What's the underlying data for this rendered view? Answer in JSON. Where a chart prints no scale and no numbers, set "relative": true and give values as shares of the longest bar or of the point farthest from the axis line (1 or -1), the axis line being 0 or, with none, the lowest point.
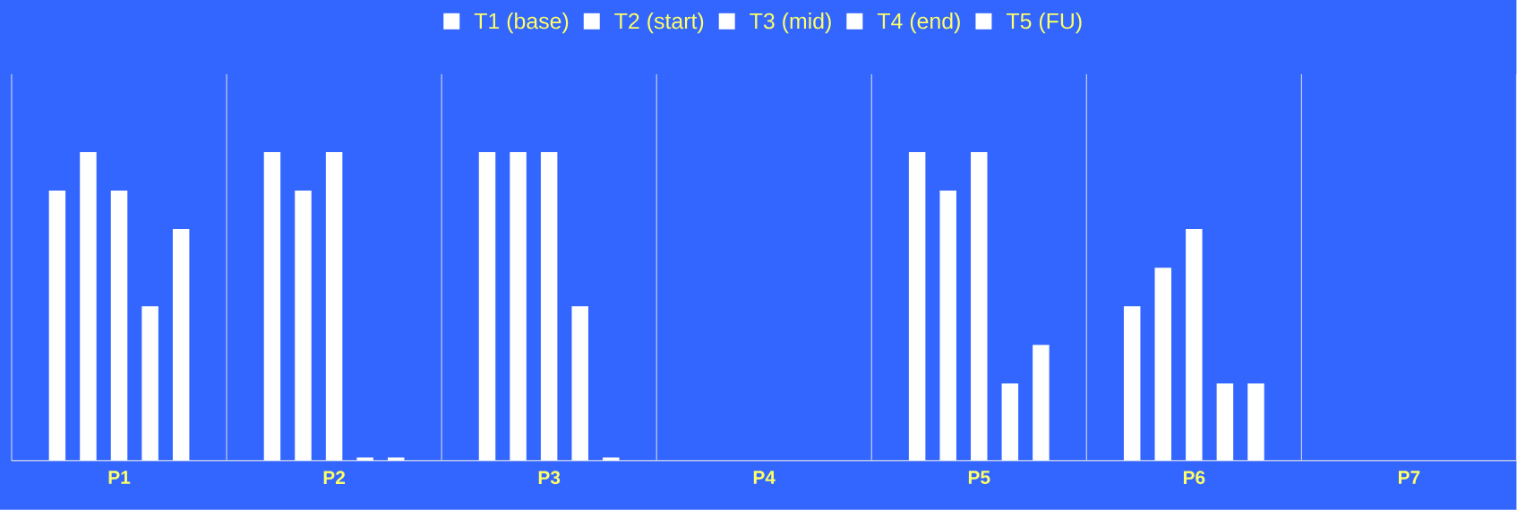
{
  "chart_data": {
    "type": "bar",
    "relative": true,
    "categories": [
      "P1",
      "P2",
      "P3",
      "P4",
      "P5",
      "P6",
      "P7"
    ],
    "series": [
      {
        "name": "T1 (base)",
        "color": "#ffffff",
        "values": [
          0.875,
          1,
          1,
          null,
          1,
          0.5,
          null
        ]
      },
      {
        "name": "T2 (start)",
        "color": "#ffffff",
        "values": [
          1,
          0.875,
          1,
          null,
          0.875,
          0.625,
          null
        ]
      },
      {
        "name": "T3 (mid)",
        "color": "#ffffff",
        "values": [
          0.875,
          1,
          1,
          null,
          1,
          0.75,
          null
        ]
      },
      {
        "name": "T4 (end)",
        "color": "#ffffff",
        "values": [
          0.5,
          0.01,
          0.5,
          null,
          0.25,
          0.25,
          null
        ]
      },
      {
        "name": "T5 (FU)",
        "color": "#ffffff",
        "values": [
          0.75,
          0.01,
          0.01,
          null,
          0.375,
          0.25,
          null
        ]
      }
    ],
    "grid": "x",
    "legend": "top"
  }
}
